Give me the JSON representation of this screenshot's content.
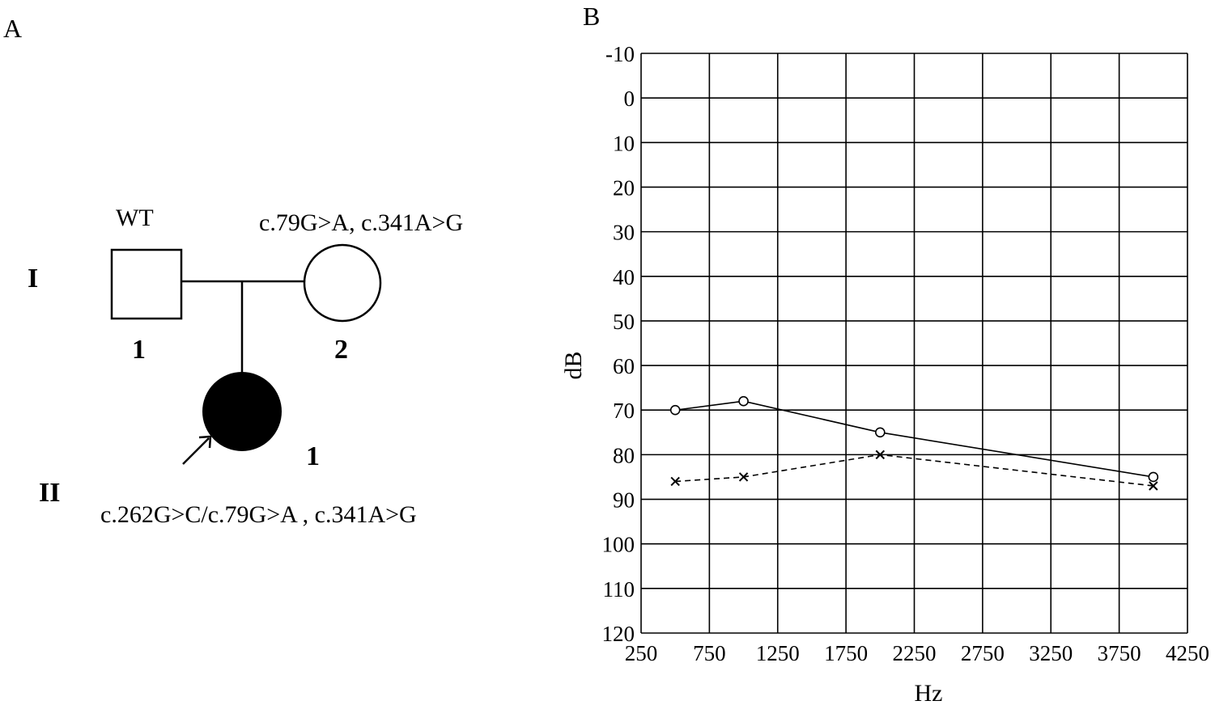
{
  "panel_a": {
    "label": "A",
    "generation_1": "I",
    "generation_2": "II",
    "father": {
      "genotype": "WT",
      "number": "1"
    },
    "mother": {
      "genotype": "c.79G>A, c.341A>G",
      "number": "2"
    },
    "proband": {
      "genotype": "c.262G>C/c.79G>A , c.341A>G",
      "number": "1"
    }
  },
  "panel_b": {
    "label": "B"
  },
  "chart_data": {
    "type": "line",
    "xlabel": "Hz",
    "ylabel": "dB",
    "x_ticks": [
      250,
      750,
      1250,
      1750,
      2250,
      2750,
      3250,
      3750,
      4250
    ],
    "y_ticks": [
      -10,
      0,
      10,
      20,
      30,
      40,
      50,
      60,
      70,
      80,
      90,
      100,
      110,
      120
    ],
    "xlim": [
      250,
      4250
    ],
    "ylim": [
      -10,
      120
    ],
    "y_inverted": true,
    "grid": true,
    "series": [
      {
        "marker": "circle",
        "line_style": "solid",
        "color": "#000000",
        "x": [
          500,
          1000,
          2000,
          4000
        ],
        "y": [
          70,
          68,
          75,
          85
        ]
      },
      {
        "marker": "x",
        "line_style": "dashed",
        "color": "#000000",
        "x": [
          500,
          1000,
          2000,
          4000
        ],
        "y": [
          86,
          85,
          80,
          87
        ]
      }
    ]
  }
}
